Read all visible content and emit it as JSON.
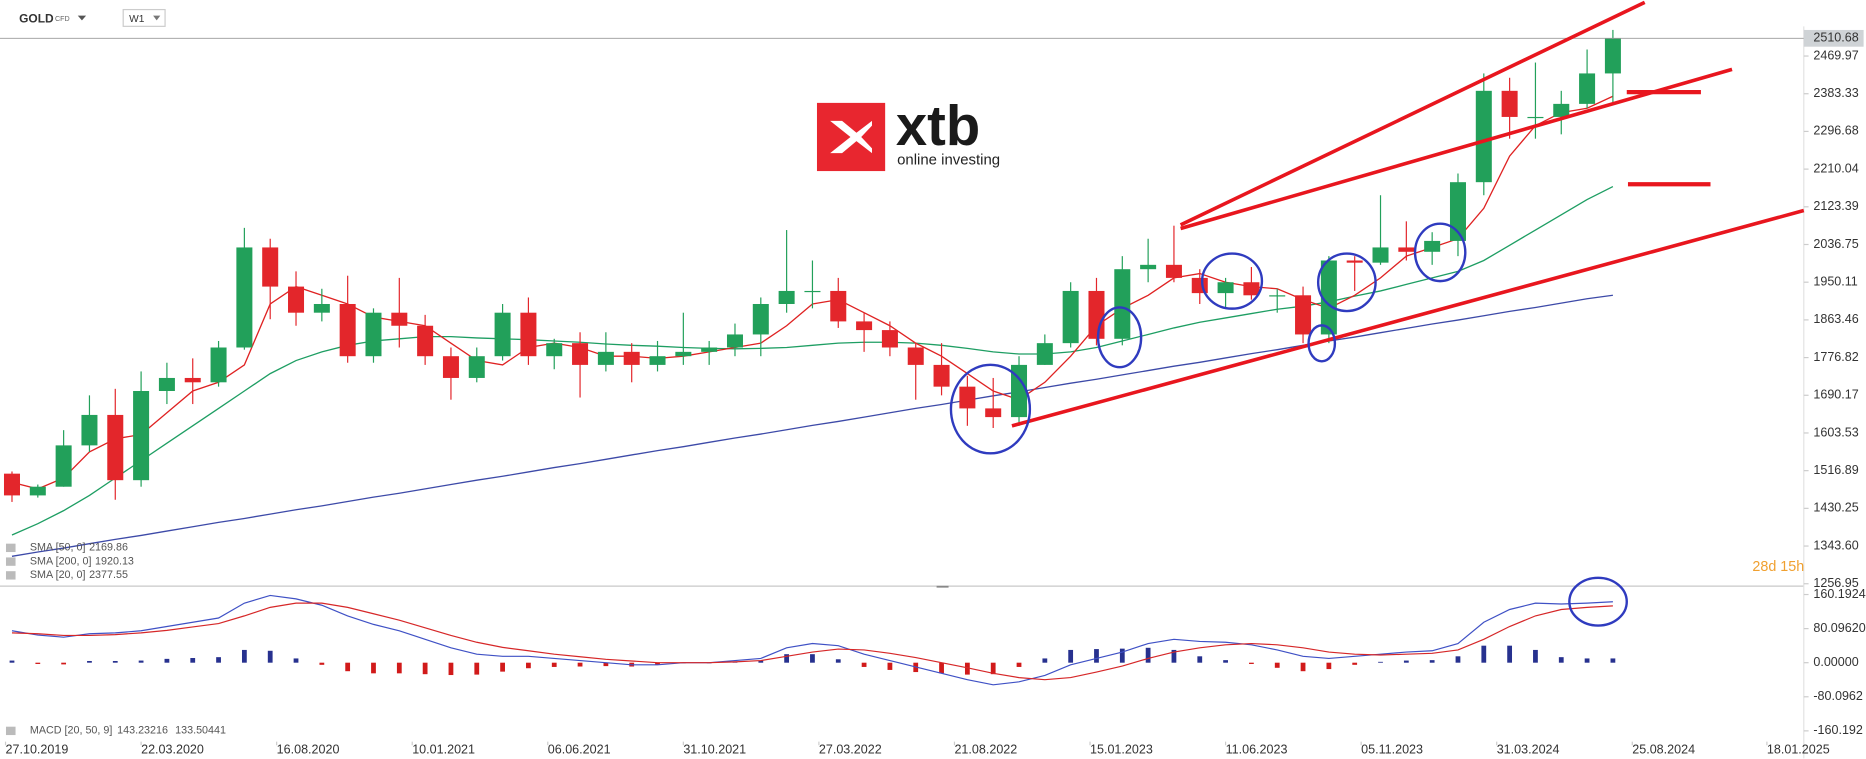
{
  "toolbar": {
    "symbol": "GOLD",
    "instrument_type": "CFD",
    "timeframe": "W1"
  },
  "logo": {
    "brand": "xtb",
    "tagline": "online investing"
  },
  "countdown": "28d 15h",
  "chart_data": [
    {
      "type": "candlestick",
      "xlim": [
        "21.10.2019",
        "27.02.2025"
      ],
      "ylim": [
        1256.95,
        2530
      ],
      "yticks": [
        2469.97,
        2383.33,
        2296.68,
        2210.04,
        2123.39,
        2036.75,
        1950.11,
        1863.46,
        1776.82,
        1690.17,
        1603.53,
        1516.89,
        1430.25,
        {
          "value": 1343.6,
          "label": "1343.60"
        },
        1256.95
      ],
      "grid": false,
      "up_color": "#22a05a",
      "down_color": "#e3262b",
      "x": [
        "03.11.2019",
        "01.12.2019",
        "29.12.2019",
        "26.01.2020",
        "23.02.2020",
        "22.03.2020",
        "19.04.2020",
        "17.05.2020",
        "14.06.2020",
        "12.07.2020",
        "09.08.2020",
        "06.09.2020",
        "04.10.2020",
        "01.11.2020",
        "29.11.2020",
        "27.12.2020",
        "24.01.2021",
        "21.02.2021",
        "21.03.2021",
        "18.04.2021",
        "16.05.2021",
        "13.06.2021",
        "11.07.2021",
        "08.08.2021",
        "05.09.2021",
        "03.10.2021",
        "31.10.2021",
        "28.11.2021",
        "26.12.2021",
        "23.01.2022",
        "20.02.2022",
        "20.03.2022",
        "17.04.2022",
        "15.05.2022",
        "12.06.2022",
        "10.07.2022",
        "07.08.2022",
        "04.09.2022",
        "02.10.2022",
        "30.10.2022",
        "27.11.2022",
        "25.12.2022",
        "22.01.2023",
        "19.02.2023",
        "19.03.2023",
        "16.04.2023",
        "14.05.2023",
        "11.06.2023",
        "09.07.2023",
        "06.08.2023",
        "03.09.2023",
        "01.10.2023",
        "29.10.2023",
        "26.11.2023",
        "24.12.2023",
        "21.01.2024",
        "18.02.2024",
        "17.03.2024",
        "14.04.2024",
        "12.05.2024",
        "09.06.2024",
        "07.07.2024",
        "04.08.2024"
      ],
      "open": [
        1510,
        1460,
        1480,
        1575,
        1645,
        1495,
        1700,
        1730,
        1720,
        1800,
        2030,
        1940,
        1880,
        1900,
        1780,
        1880,
        1850,
        1780,
        1730,
        1780,
        1880,
        1780,
        1810,
        1760,
        1790,
        1760,
        1780,
        1790,
        1800,
        1830,
        1900,
        1930,
        1930,
        1860,
        1840,
        1800,
        1760,
        1710,
        1660,
        1640,
        1760,
        1810,
        1930,
        1820,
        1980,
        1990,
        1960,
        1925,
        1950,
        1920,
        1920,
        1830,
        2000,
        1995,
        2030,
        2020,
        2045,
        2180,
        2390,
        2330,
        2330,
        2360,
        2430
      ],
      "high": [
        1515,
        1485,
        1610,
        1690,
        1705,
        1745,
        1765,
        1775,
        1815,
        2075,
        2050,
        1975,
        1935,
        1965,
        1890,
        1960,
        1875,
        1800,
        1800,
        1900,
        1915,
        1820,
        1835,
        1835,
        1810,
        1815,
        1880,
        1815,
        1855,
        1915,
        2070,
        2000,
        1960,
        1880,
        1860,
        1810,
        1810,
        1735,
        1730,
        1780,
        1830,
        1950,
        1960,
        2010,
        2050,
        2080,
        1980,
        1960,
        1985,
        1935,
        1940,
        2010,
        2010,
        2150,
        2090,
        2065,
        2200,
        2430,
        2420,
        2455,
        2390,
        2485,
        2530
      ],
      "low": [
        1445,
        1455,
        1480,
        1560,
        1450,
        1480,
        1670,
        1670,
        1710,
        1795,
        1865,
        1850,
        1860,
        1765,
        1765,
        1800,
        1760,
        1680,
        1720,
        1770,
        1760,
        1750,
        1685,
        1745,
        1720,
        1745,
        1760,
        1760,
        1780,
        1780,
        1880,
        1890,
        1845,
        1790,
        1780,
        1680,
        1690,
        1620,
        1615,
        1620,
        1760,
        1800,
        1805,
        1805,
        1950,
        1950,
        1900,
        1890,
        1910,
        1880,
        1810,
        1810,
        1930,
        1990,
        2000,
        1990,
        2010,
        2150,
        2280,
        2280,
        2290,
        2350,
        2360
      ],
      "close": [
        1460,
        1480,
        1575,
        1645,
        1495,
        1700,
        1730,
        1720,
        1800,
        2030,
        1940,
        1880,
        1900,
        1780,
        1880,
        1850,
        1780,
        1730,
        1780,
        1880,
        1780,
        1810,
        1760,
        1790,
        1760,
        1780,
        1790,
        1800,
        1830,
        1900,
        1930,
        1930,
        1860,
        1840,
        1800,
        1760,
        1710,
        1660,
        1640,
        1760,
        1810,
        1930,
        1820,
        1980,
        1990,
        1960,
        1925,
        1950,
        1920,
        1920,
        1830,
        2000,
        1995,
        2030,
        2020,
        2045,
        2180,
        2390,
        2330,
        2330,
        2360,
        2430,
        2510.68
      ],
      "series": [
        {
          "name": "SMA [50, 0]",
          "color": "#1e9e63",
          "values": [
            1369,
            1395,
            1425,
            1460,
            1500,
            1540,
            1580,
            1620,
            1660,
            1700,
            1740,
            1770,
            1790,
            1805,
            1815,
            1820,
            1825,
            1825,
            1822,
            1820,
            1818,
            1815,
            1812,
            1808,
            1805,
            1803,
            1800,
            1798,
            1797,
            1798,
            1800,
            1805,
            1810,
            1812,
            1812,
            1810,
            1805,
            1798,
            1790,
            1785,
            1785,
            1790,
            1800,
            1815,
            1830,
            1845,
            1858,
            1868,
            1878,
            1888,
            1895,
            1905,
            1918,
            1930,
            1945,
            1960,
            1975,
            2000,
            2035,
            2070,
            2105,
            2140,
            2169.86
          ]
        },
        {
          "name": "SMA [200, 0]",
          "color": "#3d4aa8",
          "values": [
            1320,
            1330,
            1339,
            1349,
            1359,
            1368,
            1378,
            1388,
            1398,
            1407,
            1417,
            1427,
            1436,
            1446,
            1456,
            1465,
            1475,
            1485,
            1495,
            1504,
            1514,
            1524,
            1533,
            1543,
            1553,
            1563,
            1572,
            1582,
            1592,
            1601,
            1611,
            1621,
            1630,
            1640,
            1650,
            1660,
            1669,
            1679,
            1689,
            1698,
            1708,
            1718,
            1727,
            1737,
            1747,
            1757,
            1766,
            1776,
            1786,
            1795,
            1805,
            1815,
            1824,
            1834,
            1844,
            1854,
            1863,
            1873,
            1883,
            1892,
            1902,
            1912,
            1920.13
          ]
        },
        {
          "name": "SMA [20, 0]",
          "color": "#df2222",
          "values": [
            1490,
            1475,
            1500,
            1560,
            1590,
            1600,
            1650,
            1700,
            1720,
            1760,
            1900,
            1940,
            1920,
            1900,
            1870,
            1860,
            1850,
            1810,
            1770,
            1760,
            1800,
            1810,
            1800,
            1780,
            1780,
            1775,
            1780,
            1790,
            1800,
            1810,
            1850,
            1900,
            1910,
            1880,
            1850,
            1810,
            1780,
            1740,
            1700,
            1680,
            1720,
            1780,
            1850,
            1890,
            1920,
            1960,
            1970,
            1950,
            1940,
            1935,
            1910,
            1890,
            1920,
            1960,
            2010,
            2030,
            2050,
            2120,
            2240,
            2310,
            2340,
            2350,
            2377.55
          ]
        }
      ]
    },
    {
      "type": "macd",
      "ylim": [
        -185.5,
        179.9
      ],
      "yticks": [
        160.1924,
        {
          "value": 80.0962,
          "label": "80.09620"
        },
        {
          "value": 0,
          "label": "0.00000"
        },
        -80.0962,
        -160.192
      ],
      "xticks": [
        "27.10.2019",
        "22.03.2020",
        "16.08.2020",
        "10.01.2021",
        "06.06.2021",
        "31.10.2021",
        "27.03.2022",
        "21.08.2022",
        "15.01.2023",
        "11.06.2023",
        "05.11.2023",
        "31.03.2024",
        "25.08.2024",
        "18.01.2025"
      ],
      "series": [
        {
          "name": "MACD [20, 50, 9]",
          "color": "#3f51c5",
          "values": [
            75,
            65,
            60,
            68,
            70,
            75,
            85,
            95,
            105,
            140,
            158,
            150,
            135,
            110,
            90,
            75,
            55,
            35,
            20,
            15,
            15,
            10,
            5,
            0,
            -5,
            -5,
            0,
            0,
            5,
            10,
            35,
            45,
            40,
            20,
            5,
            -10,
            -25,
            -40,
            -52,
            -45,
            -30,
            -5,
            10,
            25,
            45,
            55,
            50,
            48,
            42,
            30,
            15,
            10,
            15,
            20,
            25,
            28,
            45,
            95,
            125,
            140,
            138,
            140,
            143.23216
          ]
        },
        {
          "color": "#d62728",
          "values": [
            70,
            68,
            64,
            64,
            66,
            70,
            76,
            84,
            92,
            110,
            130,
            140,
            140,
            130,
            115,
            100,
            82,
            64,
            48,
            36,
            28,
            20,
            14,
            8,
            4,
            0,
            0,
            0,
            2,
            5,
            15,
            25,
            32,
            30,
            22,
            12,
            0,
            -12,
            -25,
            -35,
            -40,
            -35,
            -22,
            -8,
            10,
            25,
            35,
            42,
            45,
            42,
            35,
            25,
            20,
            18,
            20,
            22,
            30,
            55,
            85,
            110,
            125,
            130,
            133.50441
          ]
        }
      ],
      "histogram": {
        "up_color": "#27318f",
        "down_color": "#d11a1a",
        "values": [
          5,
          -3,
          -4,
          4,
          4,
          5,
          9,
          11,
          13,
          30,
          28,
          10,
          -5,
          -20,
          -25,
          -25,
          -27,
          -29,
          -28,
          -21,
          -13,
          -10,
          -9,
          -8,
          -9,
          -5,
          0,
          0,
          3,
          5,
          20,
          20,
          8,
          -10,
          -17,
          -22,
          -25,
          -28,
          -27,
          -10,
          10,
          30,
          32,
          33,
          35,
          30,
          15,
          6,
          -3,
          -12,
          -20,
          -15,
          -5,
          2,
          5,
          6,
          15,
          40,
          40,
          30,
          13,
          10,
          10
        ]
      }
    }
  ]
}
